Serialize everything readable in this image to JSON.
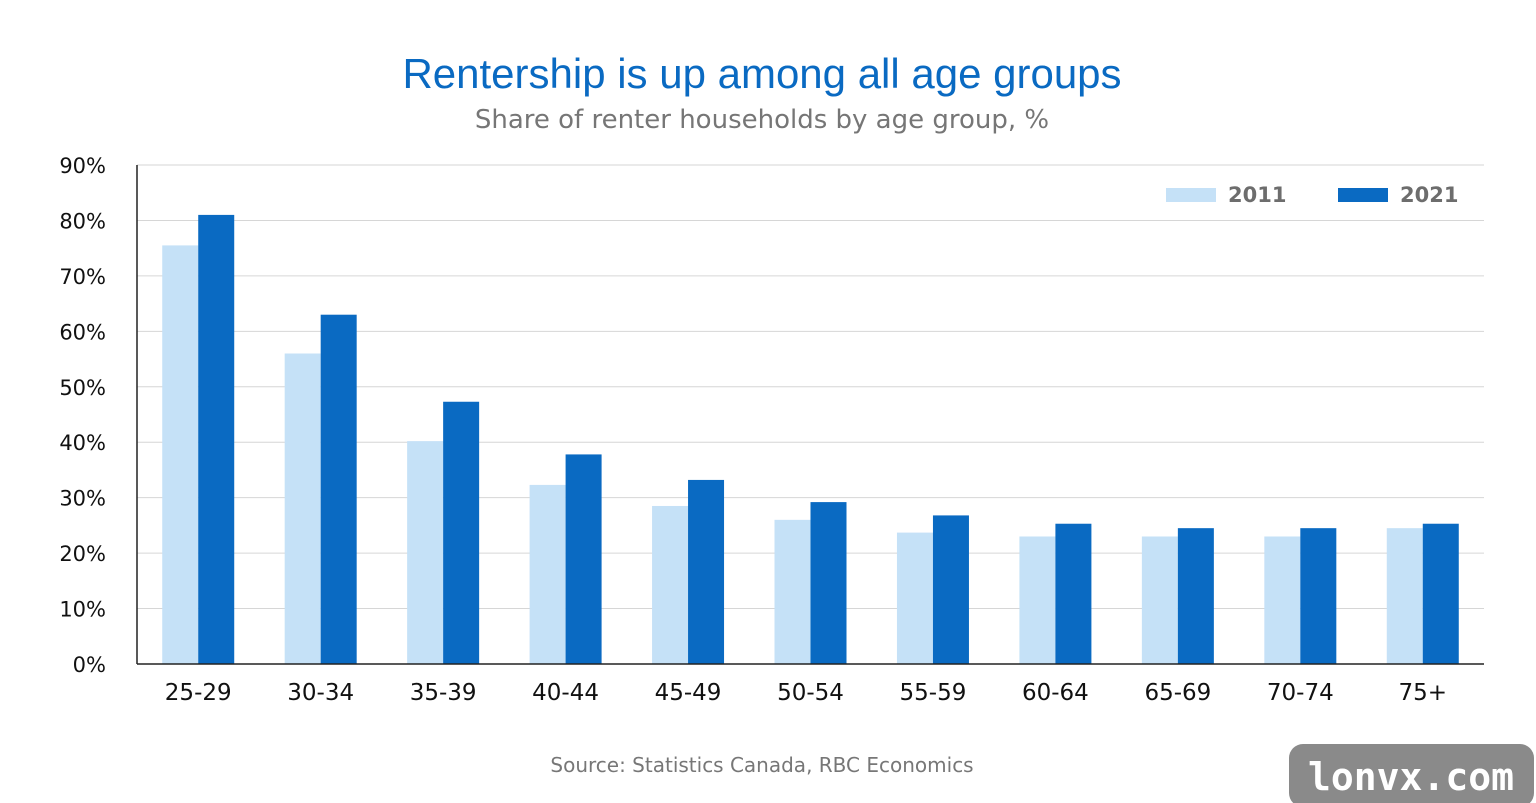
{
  "chart_data": {
    "type": "bar",
    "title": "Rentership is up among all age groups",
    "subtitle": "Share of renter households by age group, %",
    "categories": [
      "25-29",
      "30-34",
      "35-39",
      "40-44",
      "45-49",
      "50-54",
      "55-59",
      "60-64",
      "65-69",
      "70-74",
      "75+"
    ],
    "series": [
      {
        "name": "2011",
        "color": "#c5e1f7",
        "values": [
          75.5,
          56,
          40.2,
          32.3,
          28.5,
          26,
          23.7,
          23,
          23,
          23,
          24.5
        ]
      },
      {
        "name": "2021",
        "color": "#0a6ac2",
        "values": [
          81,
          63,
          47.3,
          37.8,
          33.2,
          29.2,
          26.8,
          25.3,
          24.5,
          24.5,
          25.3
        ]
      }
    ],
    "ylim": [
      0,
      90
    ],
    "yticks": [
      "0%",
      "10%",
      "20%",
      "30%",
      "40%",
      "50%",
      "60%",
      "70%",
      "80%",
      "90%"
    ],
    "grid": true,
    "legend_position": "top-right",
    "source": "Source: Statistics Canada, RBC Economics"
  },
  "watermark": "lonvx.com"
}
